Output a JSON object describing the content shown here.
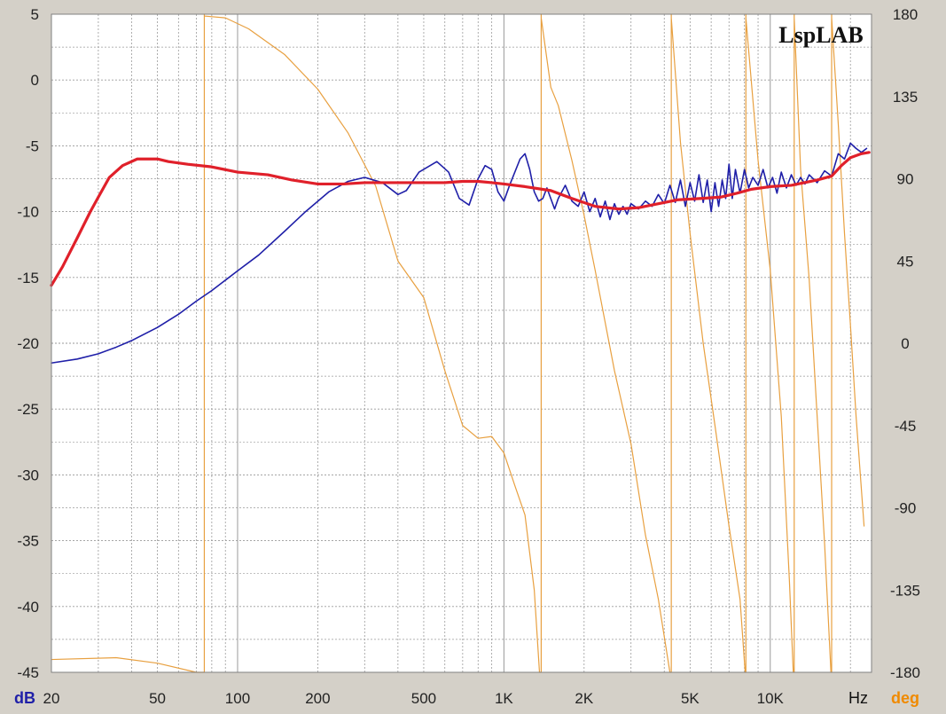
{
  "chart_data": {
    "type": "line",
    "title": "",
    "watermark": "LspLAB",
    "x_scale": "log",
    "xlim": [
      20,
      24000
    ],
    "x_unit_label": "Hz",
    "x_ticks": [
      {
        "value": 20,
        "label": "20"
      },
      {
        "value": 50,
        "label": "50"
      },
      {
        "value": 100,
        "label": "100"
      },
      {
        "value": 200,
        "label": "200"
      },
      {
        "value": 500,
        "label": "500"
      },
      {
        "value": 1000,
        "label": "1K"
      },
      {
        "value": 2000,
        "label": "2K"
      },
      {
        "value": 5000,
        "label": "5K"
      },
      {
        "value": 10000,
        "label": "10K"
      }
    ],
    "y_left": {
      "unit_label": "dB",
      "ylim": [
        -45,
        5
      ],
      "ticks": [
        5,
        0,
        -5,
        -10,
        -15,
        -20,
        -25,
        -30,
        -35,
        -40,
        -45
      ]
    },
    "y_right": {
      "unit_label": "deg",
      "ylim": [
        -180,
        180
      ],
      "ticks": [
        180,
        135,
        90,
        45,
        0,
        -45,
        -90,
        -135,
        -180
      ]
    },
    "grid": true,
    "colors": {
      "background": "#ffffff",
      "frame": "#d4d0c8",
      "grid": "#9a9a9a",
      "left_unit": "#1f1fa8",
      "right_unit": "#f08a00"
    },
    "series": [
      {
        "axis": "right",
        "color": "#e8a040",
        "points": [
          [
            20,
            -173
          ],
          [
            35,
            -172
          ],
          [
            50,
            -175
          ],
          [
            70,
            -180
          ],
          [
            75,
            179
          ],
          [
            90,
            178
          ],
          [
            110,
            172
          ],
          [
            150,
            158
          ],
          [
            200,
            139
          ],
          [
            260,
            115
          ],
          [
            330,
            86
          ],
          [
            400,
            45
          ],
          [
            500,
            25
          ],
          [
            600,
            -15
          ],
          [
            700,
            -45
          ],
          [
            800,
            -52
          ],
          [
            900,
            -51
          ],
          [
            1000,
            -60
          ],
          [
            1100,
            -78
          ],
          [
            1200,
            -94
          ],
          [
            1300,
            -135
          ],
          [
            1360,
            -180
          ],
          [
            1380,
            178
          ],
          [
            1500,
            140
          ],
          [
            1600,
            130
          ],
          [
            1800,
            100
          ],
          [
            2000,
            70
          ],
          [
            2200,
            40
          ],
          [
            2600,
            -15
          ],
          [
            3000,
            -55
          ],
          [
            3400,
            -105
          ],
          [
            3800,
            -140
          ],
          [
            4200,
            -180
          ],
          [
            4250,
            178
          ],
          [
            4600,
            110
          ],
          [
            5000,
            60
          ],
          [
            5600,
            0
          ],
          [
            6200,
            -45
          ],
          [
            7000,
            -100
          ],
          [
            7700,
            -140
          ],
          [
            8050,
            -180
          ],
          [
            8100,
            178
          ],
          [
            9000,
            100
          ],
          [
            10000,
            40
          ],
          [
            11000,
            -40
          ],
          [
            11800,
            -130
          ],
          [
            12200,
            -180
          ],
          [
            12300,
            178
          ],
          [
            13000,
            95
          ],
          [
            14000,
            35
          ],
          [
            15000,
            -40
          ],
          [
            16000,
            -110
          ],
          [
            16900,
            -180
          ],
          [
            17000,
            178
          ],
          [
            18000,
            120
          ],
          [
            19000,
            60
          ],
          [
            20000,
            10
          ],
          [
            21000,
            -40
          ],
          [
            22500,
            -100
          ]
        ]
      },
      {
        "axis": "left",
        "color": "#1f1fa8",
        "points": [
          [
            20,
            -21.5
          ],
          [
            25,
            -21.2
          ],
          [
            30,
            -20.8
          ],
          [
            35,
            -20.3
          ],
          [
            40,
            -19.8
          ],
          [
            50,
            -18.8
          ],
          [
            60,
            -17.8
          ],
          [
            70,
            -16.8
          ],
          [
            80,
            -16
          ],
          [
            100,
            -14.5
          ],
          [
            120,
            -13.3
          ],
          [
            150,
            -11.5
          ],
          [
            180,
            -10
          ],
          [
            220,
            -8.5
          ],
          [
            260,
            -7.7
          ],
          [
            300,
            -7.4
          ],
          [
            350,
            -7.8
          ],
          [
            400,
            -8.7
          ],
          [
            430,
            -8.4
          ],
          [
            480,
            -7
          ],
          [
            560,
            -6.2
          ],
          [
            620,
            -7
          ],
          [
            680,
            -9
          ],
          [
            740,
            -9.5
          ],
          [
            800,
            -7.5
          ],
          [
            850,
            -6.5
          ],
          [
            900,
            -6.8
          ],
          [
            950,
            -8.5
          ],
          [
            1000,
            -9.2
          ],
          [
            1050,
            -8
          ],
          [
            1150,
            -6
          ],
          [
            1200,
            -5.6
          ],
          [
            1250,
            -6.8
          ],
          [
            1300,
            -8.5
          ],
          [
            1350,
            -9.2
          ],
          [
            1400,
            -9
          ],
          [
            1450,
            -8.2
          ],
          [
            1550,
            -9.8
          ],
          [
            1600,
            -9
          ],
          [
            1700,
            -8
          ],
          [
            1800,
            -9.2
          ],
          [
            1900,
            -9.6
          ],
          [
            2000,
            -8.5
          ],
          [
            2100,
            -10
          ],
          [
            2200,
            -9
          ],
          [
            2300,
            -10.4
          ],
          [
            2400,
            -9.2
          ],
          [
            2500,
            -10.6
          ],
          [
            2600,
            -9.4
          ],
          [
            2700,
            -10.2
          ],
          [
            2800,
            -9.6
          ],
          [
            2900,
            -10.2
          ],
          [
            3000,
            -9.4
          ],
          [
            3200,
            -9.8
          ],
          [
            3400,
            -9.2
          ],
          [
            3600,
            -9.6
          ],
          [
            3800,
            -8.7
          ],
          [
            4000,
            -9.4
          ],
          [
            4200,
            -8
          ],
          [
            4400,
            -9.3
          ],
          [
            4600,
            -7.6
          ],
          [
            4800,
            -9.6
          ],
          [
            5000,
            -7.8
          ],
          [
            5200,
            -9.2
          ],
          [
            5400,
            -7.2
          ],
          [
            5600,
            -9.3
          ],
          [
            5800,
            -7.6
          ],
          [
            6000,
            -10
          ],
          [
            6200,
            -7.8
          ],
          [
            6400,
            -9.6
          ],
          [
            6600,
            -7.6
          ],
          [
            6800,
            -9
          ],
          [
            7000,
            -6.4
          ],
          [
            7200,
            -9
          ],
          [
            7400,
            -6.8
          ],
          [
            7700,
            -8.6
          ],
          [
            8000,
            -6.8
          ],
          [
            8300,
            -8.2
          ],
          [
            8600,
            -7.4
          ],
          [
            9000,
            -8
          ],
          [
            9400,
            -6.8
          ],
          [
            9800,
            -8.2
          ],
          [
            10200,
            -7.4
          ],
          [
            10600,
            -8.6
          ],
          [
            11000,
            -7
          ],
          [
            11500,
            -8.2
          ],
          [
            12000,
            -7.2
          ],
          [
            12500,
            -8
          ],
          [
            13000,
            -7.4
          ],
          [
            13500,
            -7.9
          ],
          [
            14000,
            -7.2
          ],
          [
            15000,
            -7.8
          ],
          [
            16000,
            -6.9
          ],
          [
            17000,
            -7.3
          ],
          [
            18000,
            -5.6
          ],
          [
            19000,
            -6
          ],
          [
            20000,
            -4.8
          ],
          [
            21000,
            -5.2
          ],
          [
            22000,
            -5.5
          ],
          [
            23000,
            -5.2
          ]
        ]
      },
      {
        "axis": "left",
        "color": "#e0202a",
        "points": [
          [
            20,
            -15.6
          ],
          [
            22,
            -14.2
          ],
          [
            25,
            -12
          ],
          [
            28,
            -10
          ],
          [
            30,
            -8.9
          ],
          [
            33,
            -7.4
          ],
          [
            37,
            -6.5
          ],
          [
            42,
            -6
          ],
          [
            50,
            -6
          ],
          [
            55,
            -6.2
          ],
          [
            65,
            -6.4
          ],
          [
            80,
            -6.6
          ],
          [
            100,
            -7
          ],
          [
            130,
            -7.2
          ],
          [
            160,
            -7.6
          ],
          [
            200,
            -7.9
          ],
          [
            250,
            -7.9
          ],
          [
            300,
            -7.8
          ],
          [
            400,
            -7.8
          ],
          [
            500,
            -7.8
          ],
          [
            600,
            -7.8
          ],
          [
            700,
            -7.7
          ],
          [
            800,
            -7.7
          ],
          [
            900,
            -7.8
          ],
          [
            1000,
            -7.9
          ],
          [
            1200,
            -8.1
          ],
          [
            1500,
            -8.4
          ],
          [
            1800,
            -9
          ],
          [
            2200,
            -9.6
          ],
          [
            2700,
            -9.8
          ],
          [
            3200,
            -9.7
          ],
          [
            3800,
            -9.4
          ],
          [
            4500,
            -9.1
          ],
          [
            5500,
            -9
          ],
          [
            6500,
            -8.9
          ],
          [
            7500,
            -8.6
          ],
          [
            8500,
            -8.3
          ],
          [
            10000,
            -8.1
          ],
          [
            12000,
            -8
          ],
          [
            15000,
            -7.6
          ],
          [
            17000,
            -7.3
          ],
          [
            18500,
            -6.5
          ],
          [
            20000,
            -5.9
          ],
          [
            22000,
            -5.6
          ],
          [
            23500,
            -5.5
          ]
        ]
      }
    ]
  }
}
